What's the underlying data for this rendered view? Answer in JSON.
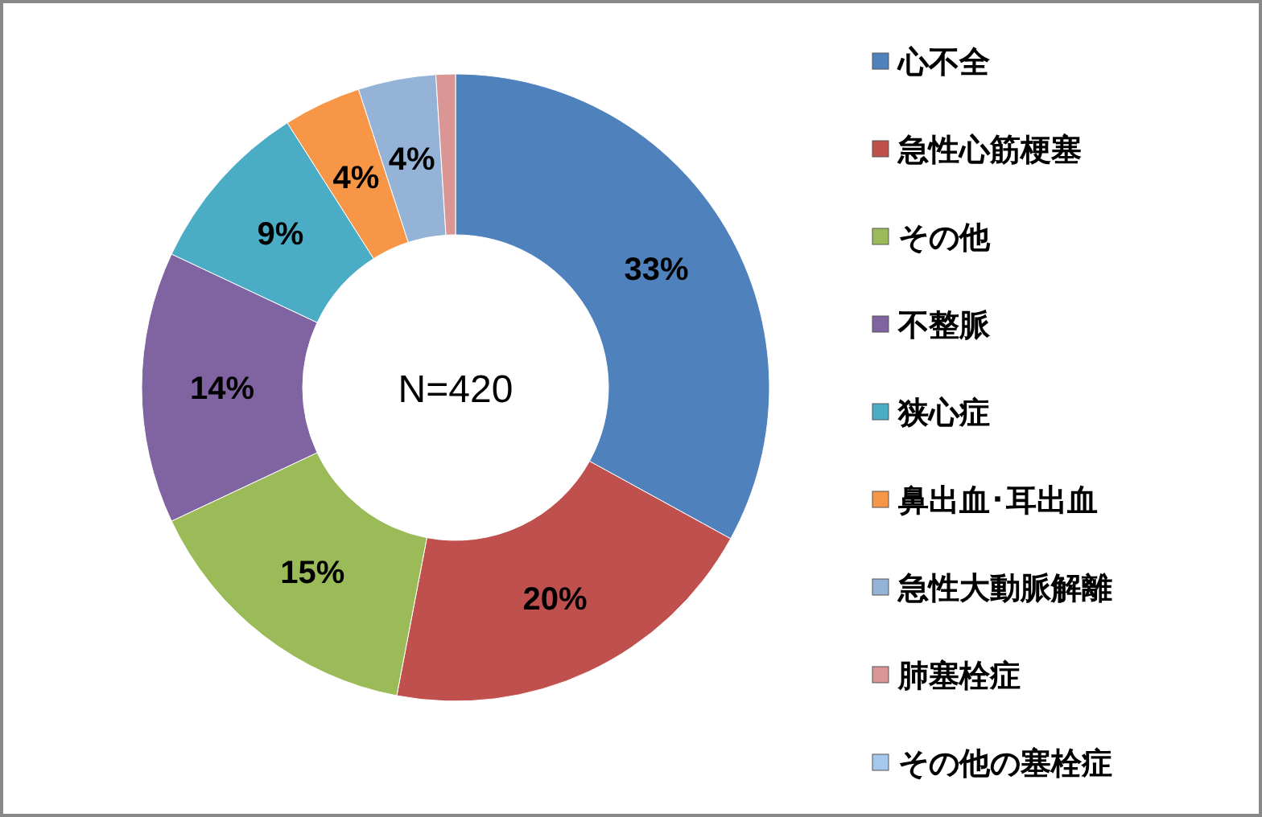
{
  "chart_data": {
    "type": "donut",
    "categories": [
      "心不全",
      "急性心筋梗塞",
      "その他",
      "不整脈",
      "狭心症",
      "鼻出血･耳出血",
      "急性大動脈解離",
      "肺塞栓症",
      "その他の塞栓症"
    ],
    "values": [
      33,
      20,
      15,
      14,
      9,
      4,
      4,
      1,
      0
    ],
    "value_labels": [
      "33%",
      "20%",
      "15%",
      "14%",
      "9%",
      "4%",
      "4%",
      null,
      null
    ],
    "colors": [
      "#4f81bd",
      "#c0504d",
      "#9bbb59",
      "#8064a2",
      "#4bacc6",
      "#f79646",
      "#95b3d7",
      "#d99694",
      "#a6c8ec"
    ],
    "annotations": [
      "N=420"
    ],
    "legend": "right"
  }
}
